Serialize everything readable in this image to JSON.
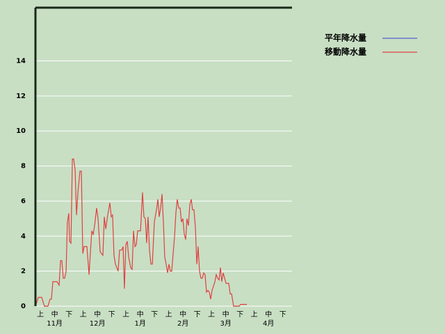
{
  "chart_data": {
    "type": "line",
    "xlim": [
      0,
      180
    ],
    "ylim": [
      0,
      17
    ],
    "yticks": [
      0,
      2,
      4,
      6,
      8,
      10,
      12,
      14
    ],
    "grid": true,
    "period_labels": [
      "上",
      "中",
      "下",
      "上",
      "中",
      "下",
      "上",
      "中",
      "下",
      "上",
      "中",
      "下",
      "上",
      "中",
      "下",
      "上",
      "中",
      "下"
    ],
    "month_labels": [
      "11月",
      "12月",
      "1月",
      "2月",
      "3月",
      "4月"
    ],
    "legend": "top-right",
    "series": [
      {
        "name": "平年降水量",
        "color": "#5060d0",
        "x": [],
        "values": []
      },
      {
        "name": "移動降水量",
        "color": "#e04040",
        "x": [
          0,
          2,
          4.4,
          6.3,
          8.8,
          10.2,
          11.2,
          12.2,
          15.1,
          16.6,
          17.6,
          18.5,
          19.5,
          20.5,
          21.5,
          22.4,
          23.4,
          23.9,
          24.9,
          25.9,
          26.8,
          27.8,
          28.8,
          29.8,
          31.2,
          32.2,
          33.2,
          34.1,
          36.1,
          37.6,
          38.5,
          39.5,
          40.5,
          41.5,
          42.9,
          43.9,
          45.4,
          47.3,
          48.3,
          49.3,
          50.7,
          52.2,
          53.2,
          54.1,
          55.1,
          56.1,
          58,
          59,
          60.5,
          61.5,
          62.4,
          63.4,
          64.4,
          65.4,
          66.8,
          67.8,
          68.8,
          69.8,
          70.7,
          71.7,
          73.7,
          75.1,
          76.1,
          77.1,
          78,
          79,
          80,
          81,
          82,
          83.4,
          84.9,
          85.9,
          86.8,
          87.8,
          88.8,
          89.8,
          90.7,
          91.7,
          92.7,
          93.7,
          94.6,
          95.6,
          96.6,
          97.6,
          98.5,
          99.5,
          100.5,
          101.5,
          102.4,
          103.4,
          104.4,
          105.4,
          106.3,
          107.3,
          108.3,
          109.3,
          110.2,
          111.2,
          112.2,
          113.2,
          114.1,
          115.1,
          116.1,
          117.1,
          118,
          119,
          120,
          121,
          122,
          122.9,
          123.9,
          125.9,
          126.8,
          127.8,
          128.8,
          129.8,
          130.7,
          131.7,
          132.7,
          133.7,
          135.6,
          136.6,
          137.6,
          139,
          142.9,
          143.9,
          148.3
        ],
        "values": [
          0,
          0.5,
          0.5,
          0,
          0,
          0.4,
          0.4,
          1.4,
          1.4,
          1.2,
          2.6,
          2.6,
          1.6,
          1.6,
          2.0,
          4.8,
          5.3,
          3.7,
          3.6,
          8.4,
          8.4,
          7.8,
          5.2,
          6.5,
          7.7,
          7.7,
          3.0,
          3.4,
          3.4,
          1.8,
          3.0,
          4.3,
          4.1,
          4.6,
          5.6,
          5.0,
          3.1,
          2.9,
          5.1,
          4.4,
          5.2,
          5.9,
          5.1,
          5.2,
          2.9,
          2.4,
          2.0,
          3.2,
          3.2,
          3.4,
          1.0,
          3.5,
          3.7,
          2.8,
          2.2,
          2.1,
          4.3,
          3.4,
          3.5,
          4.3,
          4.3,
          6.5,
          5.1,
          5.0,
          3.6,
          5.1,
          3.2,
          2.4,
          2.4,
          4.8,
          5.5,
          6.1,
          5.1,
          5.6,
          6.4,
          4.7,
          2.8,
          2.4,
          1.9,
          2.4,
          2.0,
          2.0,
          3.0,
          4.0,
          5.3,
          6.1,
          5.6,
          5.6,
          4.8,
          5.0,
          4.1,
          3.8,
          5.0,
          4.6,
          5.8,
          6.1,
          5.5,
          5.5,
          4.5,
          2.4,
          3.4,
          2.0,
          1.6,
          1.6,
          1.9,
          1.8,
          0.8,
          0.9,
          0.8,
          0.4,
          0.9,
          1.4,
          1.8,
          1.6,
          1.5,
          2.2,
          1.4,
          1.9,
          1.6,
          1.3,
          1.3,
          0.7,
          0.7,
          0,
          0,
          0.1,
          0.1
        ]
      }
    ]
  }
}
